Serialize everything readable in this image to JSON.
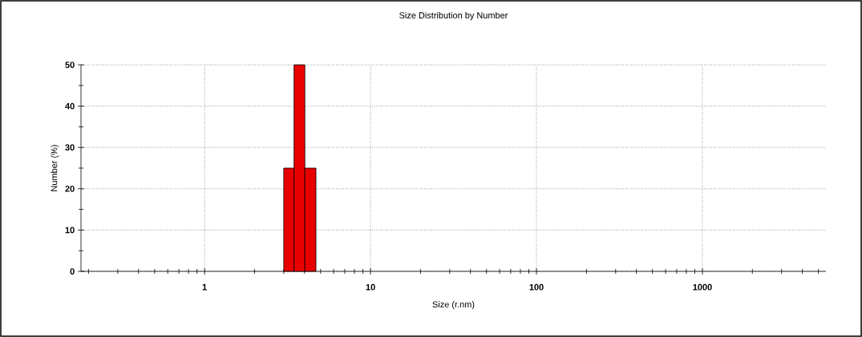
{
  "chart_data": {
    "type": "histogram",
    "title": "Size Distribution by Number",
    "xlabel": "Size (r.nm)",
    "ylabel": "Number (%)",
    "bins": [
      3.0,
      3.46,
      4.02,
      4.69
    ],
    "values": [
      25,
      50,
      25
    ],
    "color": "#e80000",
    "log": "x",
    "xlim": [
      0.18,
      5550
    ],
    "ylim": [
      0,
      50
    ],
    "xticks": [
      1,
      10,
      100,
      1000
    ],
    "yticks": [
      0,
      10,
      20,
      30,
      40,
      50
    ],
    "grid": true
  }
}
